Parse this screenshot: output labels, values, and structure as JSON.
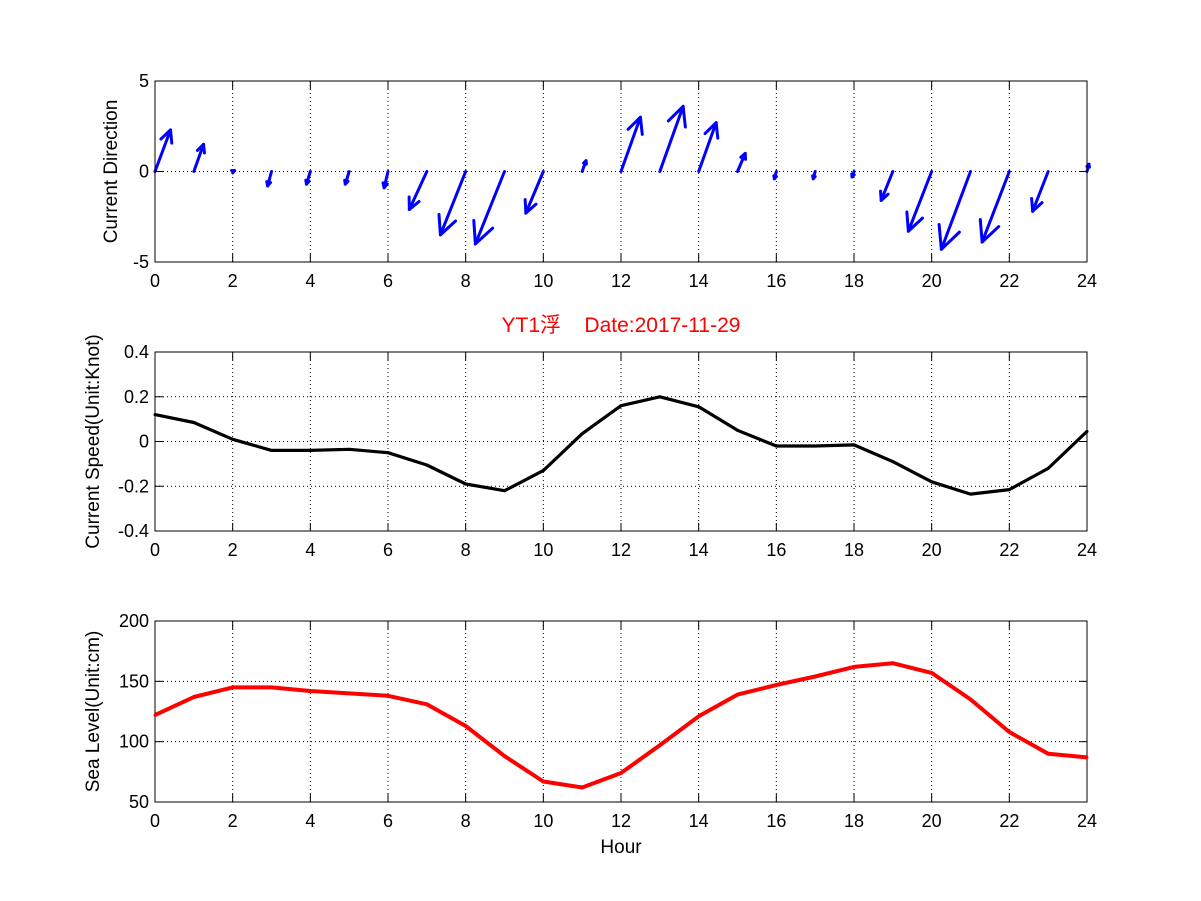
{
  "figure": {
    "title": "YT1浮    Date:2017-11-29",
    "title_color": "#ff0000"
  },
  "chart_data": [
    {
      "type": "quiver",
      "xlabel": "",
      "ylabel": "Current Direction",
      "xlim": [
        0,
        24
      ],
      "ylim": [
        -5,
        5
      ],
      "xticks": [
        0,
        2,
        4,
        6,
        8,
        10,
        12,
        14,
        16,
        18,
        20,
        22,
        24
      ],
      "yticks": [
        -5,
        0,
        5
      ],
      "grid": true,
      "color": "#0000ff",
      "arrows": [
        {
          "x": 0,
          "u": 0.4,
          "v": 2.3
        },
        {
          "x": 1,
          "u": 0.25,
          "v": 1.5
        },
        {
          "x": 2,
          "u": 0.05,
          "v": 0.05
        },
        {
          "x": 3,
          "u": -0.1,
          "v": -0.8
        },
        {
          "x": 4,
          "u": -0.1,
          "v": -0.7
        },
        {
          "x": 5,
          "u": -0.1,
          "v": -0.7
        },
        {
          "x": 6,
          "u": -0.1,
          "v": -0.9
        },
        {
          "x": 7,
          "u": -0.45,
          "v": -2.1
        },
        {
          "x": 8,
          "u": -0.65,
          "v": -3.5
        },
        {
          "x": 9,
          "u": -0.75,
          "v": -4.0
        },
        {
          "x": 10,
          "u": -0.45,
          "v": -2.3
        },
        {
          "x": 11,
          "u": 0.1,
          "v": 0.6
        },
        {
          "x": 12,
          "u": 0.5,
          "v": 3.0
        },
        {
          "x": 13,
          "u": 0.6,
          "v": 3.6
        },
        {
          "x": 14,
          "u": 0.45,
          "v": 2.7
        },
        {
          "x": 15,
          "u": 0.2,
          "v": 1.0
        },
        {
          "x": 16,
          "u": -0.05,
          "v": -0.4
        },
        {
          "x": 17,
          "u": -0.05,
          "v": -0.4
        },
        {
          "x": 18,
          "u": -0.05,
          "v": -0.3
        },
        {
          "x": 19,
          "u": -0.3,
          "v": -1.6
        },
        {
          "x": 20,
          "u": -0.6,
          "v": -3.3
        },
        {
          "x": 21,
          "u": -0.75,
          "v": -4.3
        },
        {
          "x": 22,
          "u": -0.7,
          "v": -3.9
        },
        {
          "x": 23,
          "u": -0.4,
          "v": -2.2
        },
        {
          "x": 24,
          "u": 0.05,
          "v": 0.4
        }
      ]
    },
    {
      "type": "line",
      "xlabel": "",
      "ylabel": "Current Speed(Unit:Knot)",
      "xlim": [
        0,
        24
      ],
      "ylim": [
        -0.4,
        0.4
      ],
      "xticks": [
        0,
        2,
        4,
        6,
        8,
        10,
        12,
        14,
        16,
        18,
        20,
        22,
        24
      ],
      "yticks": [
        -0.4,
        -0.2,
        0,
        0.2,
        0.4
      ],
      "ytick_labels": [
        "-0.4",
        "-0.2",
        "0",
        "0.2",
        "0.4"
      ],
      "grid": true,
      "series": [
        {
          "color": "#000000",
          "x": [
            0,
            1,
            2,
            3,
            4,
            5,
            6,
            7,
            8,
            9,
            10,
            11,
            12,
            13,
            14,
            15,
            16,
            17,
            18,
            19,
            20,
            21,
            22,
            23,
            24
          ],
          "values": [
            0.12,
            0.085,
            0.01,
            -0.04,
            -0.04,
            -0.035,
            -0.05,
            -0.105,
            -0.19,
            -0.22,
            -0.13,
            0.035,
            0.16,
            0.2,
            0.155,
            0.05,
            -0.02,
            -0.02,
            -0.015,
            -0.09,
            -0.18,
            -0.235,
            -0.215,
            -0.12,
            0.045
          ]
        }
      ]
    },
    {
      "type": "line",
      "xlabel": "Hour",
      "ylabel": "Sea Level(Unit:cm)",
      "xlim": [
        0,
        24
      ],
      "ylim": [
        50,
        200
      ],
      "xticks": [
        0,
        2,
        4,
        6,
        8,
        10,
        12,
        14,
        16,
        18,
        20,
        22,
        24
      ],
      "yticks": [
        50,
        100,
        150,
        200
      ],
      "grid": true,
      "series": [
        {
          "color": "#ff0000",
          "x": [
            0,
            1,
            2,
            3,
            4,
            5,
            6,
            7,
            8,
            9,
            10,
            11,
            12,
            13,
            14,
            15,
            16,
            17,
            18,
            19,
            20,
            21,
            22,
            23,
            24
          ],
          "values": [
            122,
            137,
            145,
            145,
            142,
            140,
            138,
            131,
            113,
            88,
            67,
            62,
            74,
            97,
            121,
            139,
            147,
            154,
            162,
            165,
            157,
            135,
            108,
            90,
            87
          ]
        }
      ]
    }
  ]
}
